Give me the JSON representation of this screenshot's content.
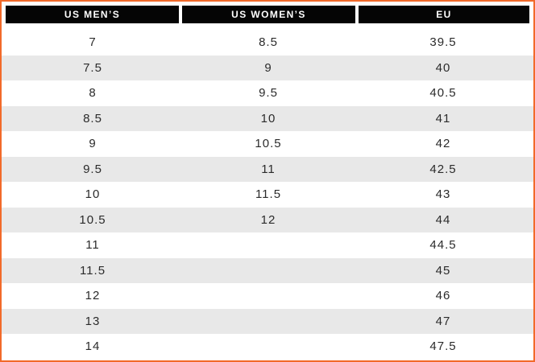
{
  "table": {
    "headers": [
      "US MEN’S",
      "US WOMEN’S",
      "EU"
    ],
    "rows": [
      [
        "7",
        "8.5",
        "39.5"
      ],
      [
        "7.5",
        "9",
        "40"
      ],
      [
        "8",
        "9.5",
        "40.5"
      ],
      [
        "8.5",
        "10",
        "41"
      ],
      [
        "9",
        "10.5",
        "42"
      ],
      [
        "9.5",
        "11",
        "42.5"
      ],
      [
        "10",
        "11.5",
        "43"
      ],
      [
        "10.5",
        "12",
        "44"
      ],
      [
        "11",
        "",
        "44.5"
      ],
      [
        "11.5",
        "",
        "45"
      ],
      [
        "12",
        "",
        "46"
      ],
      [
        "13",
        "",
        "47"
      ],
      [
        "14",
        "",
        "47.5"
      ]
    ]
  },
  "colors": {
    "border": "#f26a2a",
    "header_bg": "#050505",
    "stripe": "#e8e8e8"
  }
}
